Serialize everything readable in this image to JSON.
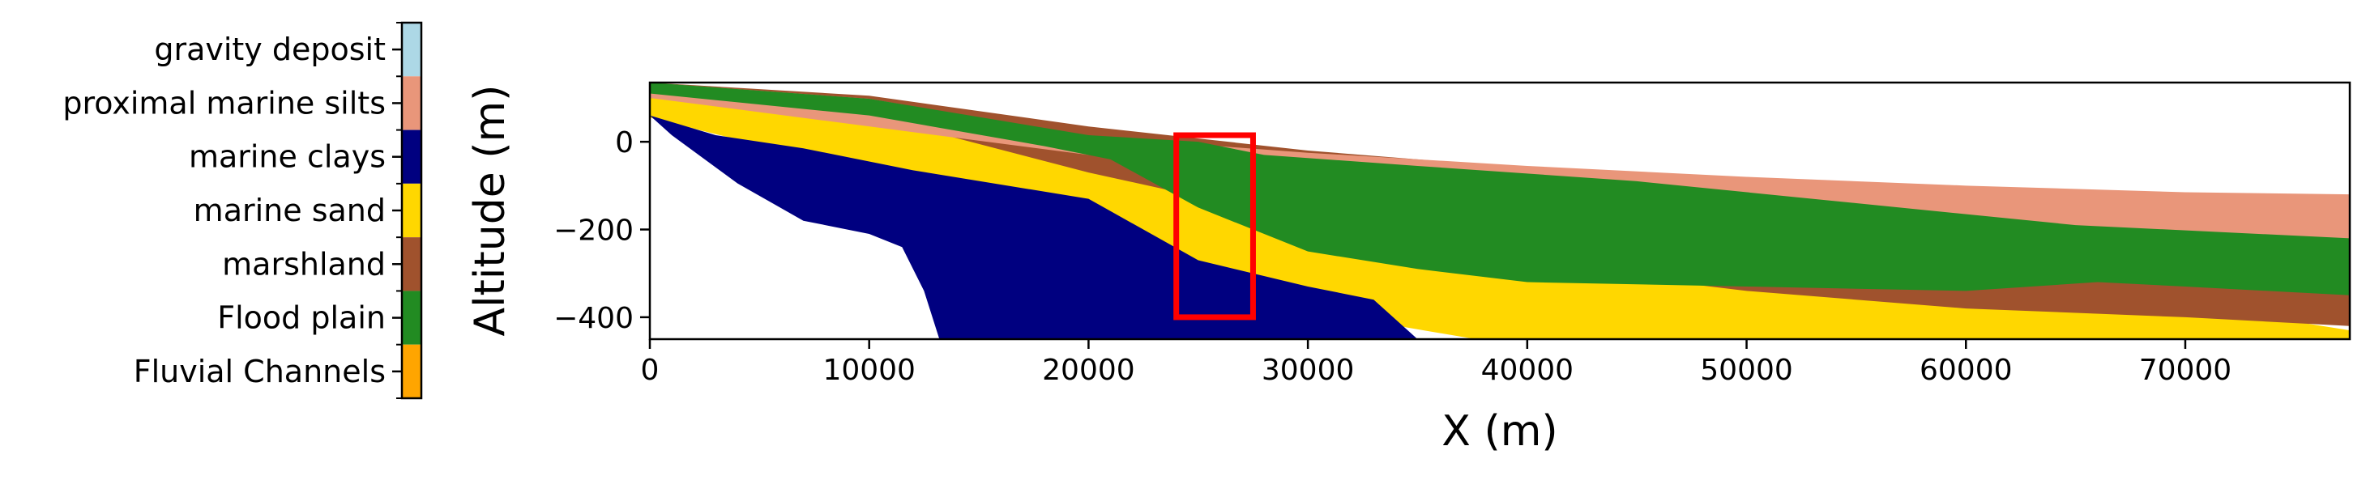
{
  "chart_data": {
    "type": "area",
    "xlabel": "X (m)",
    "ylabel": "Altitude (m)",
    "xlim": [
      0,
      77500
    ],
    "ylim": [
      -450,
      135
    ],
    "xticks": [
      0,
      10000,
      20000,
      30000,
      40000,
      50000,
      60000,
      70000
    ],
    "xtick_labels": [
      "0",
      "10000",
      "20000",
      "30000",
      "40000",
      "50000",
      "60000",
      "70000"
    ],
    "yticks": [
      0,
      -200,
      -400
    ],
    "ytick_labels": [
      "0",
      "−200",
      "−400"
    ],
    "grid": false,
    "legend_placement": "left colorbar",
    "categories": [
      {
        "name": "gravity deposit",
        "color": "#add8e6"
      },
      {
        "name": "proximal marine silts",
        "color": "#e9967a"
      },
      {
        "name": "marine clays",
        "color": "#000080"
      },
      {
        "name": "marine sand",
        "color": "#ffd700"
      },
      {
        "name": "marshland",
        "color": "#a0522d"
      },
      {
        "name": "Flood plain",
        "color": "#228b22"
      },
      {
        "name": "Fluvial Channels",
        "color": "#ffa500"
      }
    ],
    "layers": [
      {
        "facies": "marine sand",
        "top": [
          [
            0,
            130
          ],
          [
            10000,
            100
          ],
          [
            20000,
            30
          ],
          [
            30000,
            -30
          ],
          [
            40000,
            -120
          ],
          [
            50000,
            -210
          ],
          [
            60000,
            -290
          ],
          [
            70000,
            -370
          ],
          [
            77500,
            -430
          ]
        ],
        "bottom": [
          [
            0,
            55
          ],
          [
            6000,
            -20
          ],
          [
            10000,
            -90
          ],
          [
            20000,
            -280
          ],
          [
            30000,
            -385
          ],
          [
            40000,
            -470
          ],
          [
            77500,
            -470
          ]
        ]
      },
      {
        "facies": "marshland",
        "top": [
          [
            0,
            135
          ],
          [
            10000,
            105
          ],
          [
            20000,
            35
          ],
          [
            30000,
            -20
          ],
          [
            40000,
            -60
          ],
          [
            50000,
            -100
          ],
          [
            60000,
            -150
          ],
          [
            70000,
            -200
          ],
          [
            77500,
            -250
          ]
        ],
        "bottom": [
          [
            0,
            100
          ],
          [
            10000,
            60
          ],
          [
            20000,
            -70
          ],
          [
            30000,
            -180
          ],
          [
            40000,
            -280
          ],
          [
            50000,
            -340
          ],
          [
            60000,
            -380
          ],
          [
            70000,
            -400
          ],
          [
            77500,
            -420
          ]
        ]
      },
      {
        "facies": "proximal marine silts",
        "top": [
          [
            0,
            135
          ],
          [
            10000,
            98
          ],
          [
            20000,
            12
          ],
          [
            30000,
            -25
          ],
          [
            40000,
            -55
          ],
          [
            50000,
            -80
          ],
          [
            60000,
            -100
          ],
          [
            70000,
            -115
          ],
          [
            77500,
            -120
          ]
        ],
        "bottom": [
          [
            0,
            100
          ],
          [
            20000,
            -30
          ],
          [
            40000,
            -100
          ],
          [
            60000,
            -200
          ],
          [
            77500,
            -300
          ]
        ]
      },
      {
        "facies": "Flood plain",
        "top": [
          [
            0,
            135
          ],
          [
            10000,
            98
          ],
          [
            20000,
            15
          ],
          [
            25000,
            0
          ],
          [
            28000,
            -30
          ],
          [
            35000,
            -55
          ],
          [
            45000,
            -90
          ],
          [
            55000,
            -140
          ],
          [
            65000,
            -190
          ],
          [
            77500,
            -220
          ]
        ],
        "bottom": [
          [
            0,
            110
          ],
          [
            10000,
            60
          ],
          [
            18000,
            -10
          ],
          [
            21000,
            -40
          ],
          [
            25000,
            -150
          ],
          [
            30000,
            -250
          ],
          [
            35000,
            -290
          ],
          [
            40000,
            -320
          ],
          [
            50000,
            -330
          ],
          [
            60000,
            -340
          ],
          [
            66000,
            -320
          ],
          [
            70000,
            -330
          ],
          [
            77500,
            -350
          ]
        ]
      },
      {
        "facies": "marine clays",
        "top": [
          [
            0,
            60
          ],
          [
            3000,
            15
          ],
          [
            7000,
            -15
          ],
          [
            12000,
            -65
          ],
          [
            20000,
            -130
          ],
          [
            25000,
            -270
          ],
          [
            30000,
            -330
          ],
          [
            33000,
            -360
          ],
          [
            35000,
            -450
          ]
        ],
        "bottom": [
          [
            1000,
            15
          ],
          [
            4000,
            -95
          ],
          [
            7000,
            -180
          ],
          [
            10000,
            -210
          ],
          [
            11500,
            -240
          ],
          [
            12500,
            -340
          ],
          [
            13200,
            -450
          ]
        ]
      }
    ],
    "annotations": [
      {
        "type": "rectangle",
        "color": "#ff0000",
        "x": [
          24000,
          27500
        ],
        "y": [
          -400,
          15
        ]
      }
    ]
  }
}
